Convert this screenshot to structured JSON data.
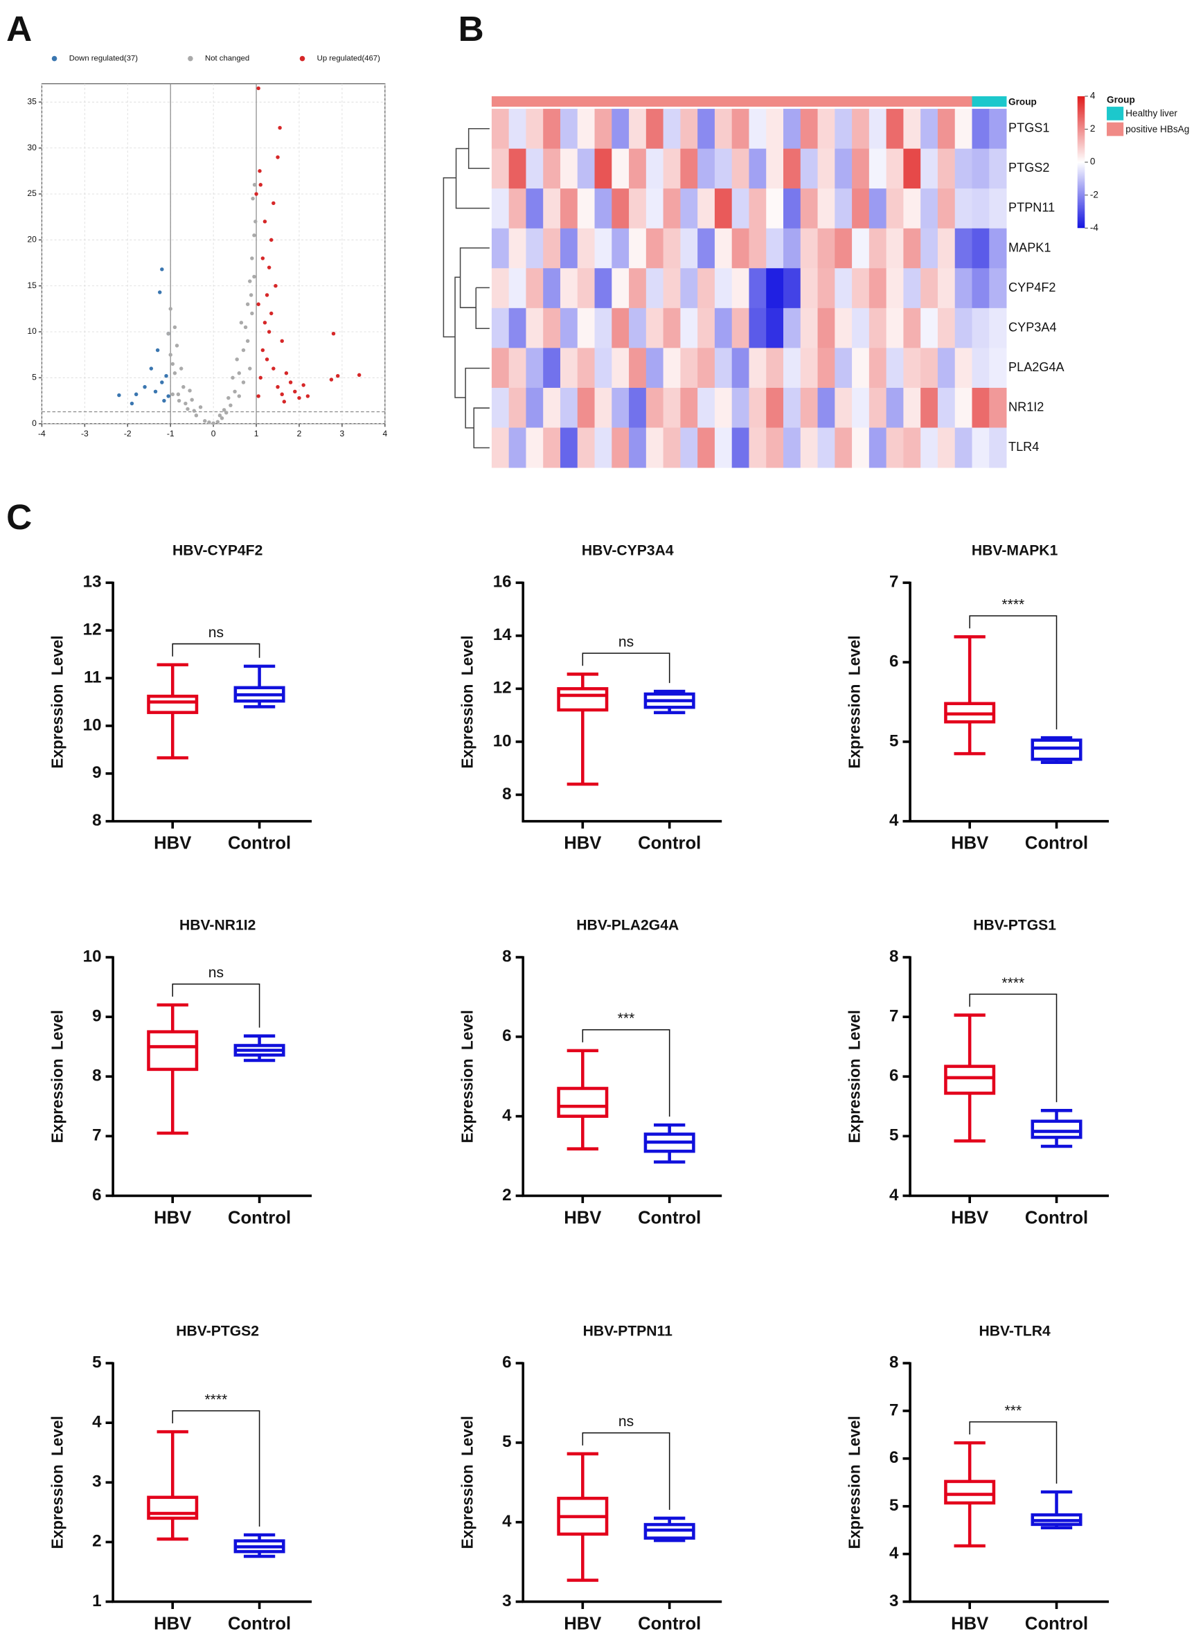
{
  "panels": [
    "A",
    "B",
    "C"
  ],
  "chart_data": [
    {
      "type": "scatter",
      "series": [
        {
          "name": "Down regulated(37)",
          "color": "#3a76b0",
          "x": [
            -1.05,
            -1.1,
            -1.2,
            -1.35,
            -1.45,
            -1.6,
            -1.8,
            -1.9,
            -2.2,
            -1.2,
            -1.25,
            -1.3,
            -1.05,
            -1.15
          ],
          "values": [
            3,
            5.2,
            4.5,
            3.5,
            6,
            4,
            3.2,
            2.2,
            3.1,
            16.8,
            14.3,
            8,
            9.8,
            2.5
          ]
        },
        {
          "name": "Not changed",
          "color": "#aaaaaa",
          "x": [
            -0.95,
            -0.8,
            -0.6,
            -0.4,
            -0.2,
            0,
            0.2,
            0.4,
            0.5,
            0.6,
            0.7,
            0.75,
            0.8,
            0.85,
            0.9,
            0.95,
            0.98,
            0.9,
            0.7,
            0.6,
            0.55,
            0.8,
            0.85,
            0.95,
            0.65,
            0.45,
            0.35,
            0.3,
            -0.3,
            -0.5,
            -0.7,
            -0.9,
            -1.0,
            -0.85,
            -1.05,
            -1.0,
            -0.75,
            -0.65,
            -0.45,
            0.1,
            -0.1,
            0.25,
            0.92,
            0.96,
            0.88,
            -0.95,
            -0.82,
            -0.9,
            0.15,
            -0.55
          ],
          "values": [
            3.2,
            2.5,
            1.6,
            0.9,
            0.3,
            0.05,
            0.6,
            2.0,
            3.5,
            5.5,
            8.0,
            10.5,
            13.0,
            15.5,
            18.0,
            20.5,
            22.0,
            12,
            4.5,
            3,
            7,
            9,
            6,
            16,
            11,
            5,
            2.8,
            1.2,
            1.8,
            2.6,
            4.0,
            5.5,
            7.5,
            8.5,
            9.8,
            12.5,
            6.0,
            2.2,
            1.4,
            0.2,
            0.15,
            1.5,
            24.5,
            26,
            14,
            6.5,
            3.2,
            10.5,
            0.9,
            3.6
          ]
        },
        {
          "name": "Up regulated(467)",
          "color": "#d62728",
          "x": [
            1.05,
            1.1,
            1.15,
            1.2,
            1.25,
            1.3,
            1.35,
            1.4,
            1.5,
            1.55,
            1.05,
            1.1,
            1.0,
            1.2,
            1.3,
            1.4,
            1.5,
            1.6,
            1.7,
            1.8,
            1.9,
            2.0,
            2.1,
            2.2,
            1.25,
            1.35,
            1.45,
            1.6,
            1.15,
            1.05,
            2.9,
            2.8,
            3.4,
            2.75,
            1.08,
            1.65
          ],
          "values": [
            3,
            5,
            8,
            11,
            14,
            17,
            20,
            24,
            29,
            32.2,
            36.5,
            26,
            25,
            22,
            10,
            6,
            4,
            3.2,
            5.5,
            4.5,
            3.5,
            2.8,
            4.2,
            3,
            7,
            12,
            15,
            9,
            18,
            13,
            5.2,
            9.8,
            5.3,
            4.8,
            27.5,
            2.4
          ]
        }
      ],
      "xlim": [
        -4,
        4
      ],
      "xticks": [
        -4,
        -3,
        -2,
        -1,
        0,
        1,
        2,
        3,
        4
      ],
      "ylim": [
        0,
        37
      ],
      "yticks": [
        0,
        5,
        10,
        15,
        20,
        25,
        30,
        35
      ],
      "vlines": [
        -1,
        1
      ],
      "hline": 1.3,
      "grid": true
    },
    {
      "type": "heatmap",
      "rows": [
        "PTGS1",
        "PTGS2",
        "PTPN11",
        "MAPK1",
        "CYP4F2",
        "CYP3A4",
        "PLA2G4A",
        "NR1I2",
        "TLR4"
      ],
      "values": [
        [
          1.2,
          -0.5,
          0.8,
          2.1,
          -1.0,
          0.3,
          1.5,
          -1.8,
          0.6,
          2.4,
          -0.7,
          1.1,
          -2.0,
          0.9,
          1.8,
          -0.3,
          0.4,
          -1.5,
          2.0,
          0.7,
          -0.9,
          1.3,
          -0.4,
          2.6,
          0.5,
          -1.2,
          1.9,
          0.2,
          -2.2,
          -1.6
        ],
        [
          0.9,
          2.8,
          -0.6,
          1.4,
          0.3,
          -1.1,
          3.0,
          0.2,
          1.7,
          -0.4,
          0.8,
          2.2,
          -1.3,
          -0.8,
          1.0,
          -1.6,
          0.4,
          2.5,
          -0.9,
          0.6,
          -1.4,
          1.8,
          -0.2,
          0.7,
          3.2,
          -0.5,
          1.1,
          -1.0,
          -1.2,
          -0.8
        ],
        [
          -0.4,
          1.3,
          -2.1,
          0.6,
          1.9,
          0.2,
          -1.5,
          2.4,
          0.8,
          -0.3,
          1.6,
          -1.2,
          0.5,
          2.9,
          -0.7,
          1.2,
          0.1,
          -2.3,
          1.5,
          0.4,
          -0.9,
          2.1,
          -1.7,
          0.9,
          0.3,
          -1.0,
          1.4,
          -0.6,
          -0.7,
          -0.5
        ],
        [
          -1.2,
          0.4,
          -0.8,
          1.1,
          -1.9,
          0.6,
          -0.3,
          -1.4,
          0.2,
          1.6,
          0.9,
          -0.5,
          -2.0,
          0.3,
          1.8,
          1.2,
          -0.7,
          -1.5,
          0.8,
          1.4,
          2.0,
          -0.2,
          1.1,
          0.5,
          1.7,
          -0.9,
          0.6,
          -2.4,
          -2.8,
          -1.6
        ],
        [
          0.6,
          -0.3,
          1.2,
          -1.8,
          0.4,
          0.9,
          -2.2,
          0.2,
          1.5,
          -0.6,
          0.8,
          -1.1,
          1.0,
          -0.4,
          0.3,
          -2.6,
          -3.8,
          -3.2,
          0.7,
          1.3,
          -0.5,
          0.9,
          1.6,
          0.4,
          -0.8,
          1.1,
          0.5,
          -1.4,
          -2.0,
          -1.3
        ],
        [
          -0.8,
          -2.0,
          0.5,
          1.3,
          -1.4,
          0.2,
          -0.6,
          1.9,
          -1.1,
          0.7,
          1.5,
          -0.3,
          0.9,
          -1.6,
          1.2,
          -2.8,
          -3.5,
          -1.2,
          0.6,
          1.8,
          0.4,
          -0.5,
          1.0,
          0.3,
          1.4,
          -0.2,
          0.8,
          -0.9,
          -0.6,
          -0.4
        ],
        [
          1.5,
          0.8,
          -1.3,
          -2.4,
          0.6,
          1.2,
          -0.7,
          0.4,
          1.8,
          -1.5,
          0.3,
          0.9,
          1.4,
          -0.8,
          -1.9,
          0.5,
          1.1,
          -0.4,
          0.7,
          1.6,
          -1.0,
          0.2,
          1.3,
          -0.6,
          0.8,
          1.0,
          -1.2,
          0.4,
          -0.5,
          -0.3
        ],
        [
          -0.6,
          1.1,
          -1.7,
          0.4,
          -0.9,
          2.0,
          0.5,
          -1.3,
          -2.4,
          1.4,
          0.8,
          1.7,
          -0.5,
          0.3,
          -1.1,
          0.9,
          2.2,
          -0.8,
          1.3,
          -1.9,
          0.6,
          -0.3,
          1.0,
          -1.5,
          0.4,
          2.4,
          -0.7,
          0.2,
          2.6,
          1.8
        ],
        [
          0.7,
          -1.4,
          0.3,
          1.2,
          -2.6,
          0.9,
          -0.5,
          1.6,
          -1.8,
          0.4,
          1.1,
          -0.9,
          2.0,
          -0.3,
          -2.4,
          0.8,
          1.3,
          -1.2,
          0.5,
          -0.7,
          1.4,
          0.2,
          -1.6,
          0.9,
          1.2,
          -0.4,
          0.6,
          -1.0,
          -0.3,
          -0.6
        ]
      ],
      "column_group": [
        1,
        1,
        1,
        1,
        1,
        1,
        1,
        1,
        1,
        1,
        1,
        1,
        1,
        1,
        1,
        1,
        1,
        1,
        1,
        1,
        1,
        1,
        1,
        1,
        1,
        1,
        1,
        1,
        0,
        0
      ],
      "annotation_label": "Group",
      "group_legend": {
        "title": "Group",
        "names": [
          "Healthy liver",
          "positive HBsAg"
        ],
        "colors": [
          "#1cc8cc",
          "#f08a86"
        ]
      },
      "zlim": [
        -4,
        4
      ],
      "zticks": [
        4,
        2,
        0,
        -2,
        -4
      ],
      "colors": {
        "low": "#1414e0",
        "mid": "#ffffff",
        "high": "#e01c1c"
      }
    },
    {
      "type": "box",
      "title": "HBV-CYP4F2",
      "ylabel": "Expression Level",
      "categories": [
        "HBV",
        "Control"
      ],
      "colors": [
        "#e3001b",
        "#1010dc"
      ],
      "boxes": [
        {
          "min": 9.33,
          "q1": 10.28,
          "median": 10.5,
          "q3": 10.62,
          "max": 11.28
        },
        {
          "min": 10.4,
          "q1": 10.52,
          "median": 10.65,
          "q3": 10.8,
          "max": 11.25
        }
      ],
      "annotation": "ns",
      "ylim": [
        8,
        13
      ],
      "yticks": [
        8,
        9,
        10,
        11,
        12,
        13
      ]
    },
    {
      "type": "box",
      "title": "HBV-CYP3A4",
      "ylabel": "Expression Level",
      "categories": [
        "HBV",
        "Control"
      ],
      "colors": [
        "#e3001b",
        "#1010dc"
      ],
      "boxes": [
        {
          "min": 8.4,
          "q1": 11.2,
          "median": 11.75,
          "q3": 12.0,
          "max": 12.55
        },
        {
          "min": 11.1,
          "q1": 11.3,
          "median": 11.55,
          "q3": 11.8,
          "max": 11.9
        }
      ],
      "annotation": "ns",
      "ylim": [
        7,
        16
      ],
      "yticks": [
        8,
        10,
        12,
        14,
        16
      ]
    },
    {
      "type": "box",
      "title": "HBV-MAPK1",
      "ylabel": "Expression Level",
      "categories": [
        "HBV",
        "Control"
      ],
      "colors": [
        "#e3001b",
        "#1010dc"
      ],
      "boxes": [
        {
          "min": 4.85,
          "q1": 5.25,
          "median": 5.35,
          "q3": 5.48,
          "max": 6.32
        },
        {
          "min": 4.74,
          "q1": 4.78,
          "median": 4.92,
          "q3": 5.02,
          "max": 5.05
        }
      ],
      "annotation": "****",
      "ylim": [
        4,
        7
      ],
      "yticks": [
        4,
        5,
        6,
        7
      ]
    },
    {
      "type": "box",
      "title": "HBV-NR1I2",
      "ylabel": "Expression Level",
      "categories": [
        "HBV",
        "Control"
      ],
      "colors": [
        "#e3001b",
        "#1010dc"
      ],
      "boxes": [
        {
          "min": 7.05,
          "q1": 8.12,
          "median": 8.5,
          "q3": 8.75,
          "max": 9.2
        },
        {
          "min": 8.27,
          "q1": 8.36,
          "median": 8.44,
          "q3": 8.52,
          "max": 8.68
        }
      ],
      "annotation": "ns",
      "ylim": [
        6,
        10
      ],
      "yticks": [
        6,
        7,
        8,
        9,
        10
      ]
    },
    {
      "type": "box",
      "title": "HBV-PLA2G4A",
      "ylabel": "Expression Level",
      "categories": [
        "HBV",
        "Control"
      ],
      "colors": [
        "#e3001b",
        "#1010dc"
      ],
      "boxes": [
        {
          "min": 3.18,
          "q1": 4.0,
          "median": 4.25,
          "q3": 4.7,
          "max": 5.65
        },
        {
          "min": 2.85,
          "q1": 3.12,
          "median": 3.35,
          "q3": 3.55,
          "max": 3.78
        }
      ],
      "annotation": "***",
      "ylim": [
        2,
        8
      ],
      "yticks": [
        2,
        4,
        6,
        8
      ]
    },
    {
      "type": "box",
      "title": "HBV-PTGS1",
      "ylabel": "Expression Level",
      "categories": [
        "HBV",
        "Control"
      ],
      "colors": [
        "#e3001b",
        "#1010dc"
      ],
      "boxes": [
        {
          "min": 4.92,
          "q1": 5.72,
          "median": 5.98,
          "q3": 6.17,
          "max": 7.03
        },
        {
          "min": 4.83,
          "q1": 4.98,
          "median": 5.08,
          "q3": 5.25,
          "max": 5.43
        }
      ],
      "annotation": "****",
      "ylim": [
        4,
        8
      ],
      "yticks": [
        4,
        5,
        6,
        7,
        8
      ]
    },
    {
      "type": "box",
      "title": "HBV-PTGS2",
      "ylabel": "Expression Level",
      "categories": [
        "HBV",
        "Control"
      ],
      "colors": [
        "#e3001b",
        "#1010dc"
      ],
      "boxes": [
        {
          "min": 2.05,
          "q1": 2.4,
          "median": 2.48,
          "q3": 2.75,
          "max": 3.85
        },
        {
          "min": 1.76,
          "q1": 1.84,
          "median": 1.92,
          "q3": 2.02,
          "max": 2.12
        }
      ],
      "annotation": "****",
      "ylim": [
        1,
        5
      ],
      "yticks": [
        1,
        2,
        3,
        4,
        5
      ]
    },
    {
      "type": "box",
      "title": "HBV-PTPN11",
      "ylabel": "Expression Level",
      "categories": [
        "HBV",
        "Control"
      ],
      "colors": [
        "#e3001b",
        "#1010dc"
      ],
      "boxes": [
        {
          "min": 3.27,
          "q1": 3.85,
          "median": 4.07,
          "q3": 4.3,
          "max": 4.86
        },
        {
          "min": 3.77,
          "q1": 3.8,
          "median": 3.9,
          "q3": 3.97,
          "max": 4.05
        }
      ],
      "annotation": "ns",
      "ylim": [
        3,
        6
      ],
      "yticks": [
        3,
        4,
        5,
        6
      ]
    },
    {
      "type": "box",
      "title": "HBV-TLR4",
      "ylabel": "Expression Level",
      "categories": [
        "HBV",
        "Control"
      ],
      "colors": [
        "#e3001b",
        "#1010dc"
      ],
      "boxes": [
        {
          "min": 4.17,
          "q1": 5.07,
          "median": 5.25,
          "q3": 5.52,
          "max": 6.33
        },
        {
          "min": 4.55,
          "q1": 4.62,
          "median": 4.7,
          "q3": 4.82,
          "max": 5.3
        }
      ],
      "annotation": "***",
      "ylim": [
        3,
        8
      ],
      "yticks": [
        3,
        4,
        5,
        6,
        7,
        8
      ]
    }
  ]
}
